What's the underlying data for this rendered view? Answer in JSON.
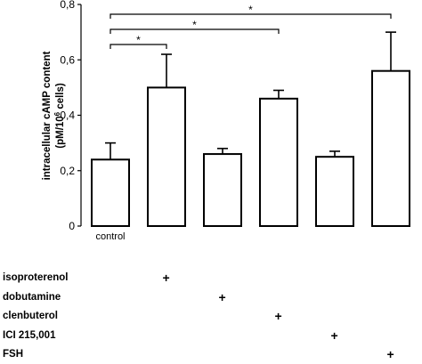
{
  "chart_data": {
    "type": "bar",
    "ylabel_line1": "intracellular cAMP content",
    "ylabel_line2_prefix": "(pM/10",
    "ylabel_line2_sup": "6",
    "ylabel_line2_suffix": " cells)",
    "ylim": [
      0,
      0.8
    ],
    "yticks": [
      0,
      0.2,
      0.4,
      0.6,
      0.8
    ],
    "ytick_labels": [
      "0",
      "0,2",
      "0,4",
      "0,6",
      "0,8"
    ],
    "categories": [
      "control",
      "",
      "",
      "",
      "",
      ""
    ],
    "values": [
      0.24,
      0.5,
      0.26,
      0.46,
      0.25,
      0.56
    ],
    "errors": [
      0.06,
      0.12,
      0.02,
      0.03,
      0.02,
      0.14
    ],
    "significance": [
      {
        "from": 0,
        "to": 1,
        "label": "*"
      },
      {
        "from": 0,
        "to": 3,
        "label": "*"
      },
      {
        "from": 0,
        "to": 5,
        "label": "*"
      }
    ],
    "grid": false,
    "legend": "none"
  },
  "treatments": [
    {
      "name": "isoproterenol",
      "bar": 1,
      "mark": "+"
    },
    {
      "name": "dobutamine",
      "bar": 2,
      "mark": "+"
    },
    {
      "name": "clenbuterol",
      "bar": 3,
      "mark": "+"
    },
    {
      "name": "ICI 215,001",
      "bar": 4,
      "mark": "+"
    },
    {
      "name": "FSH",
      "bar": 5,
      "mark": "+"
    }
  ]
}
